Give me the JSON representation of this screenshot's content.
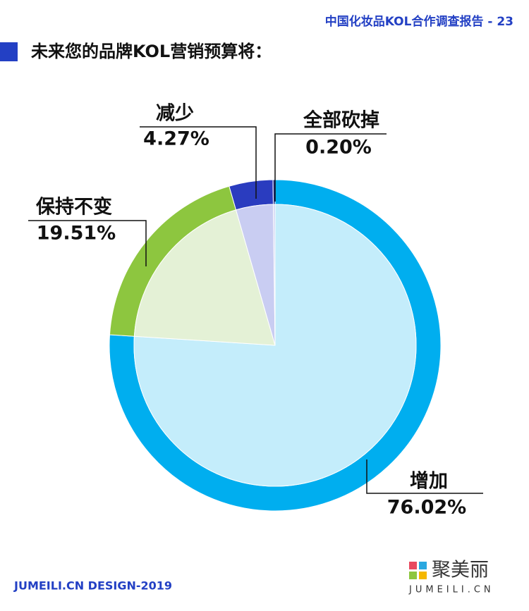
{
  "header": "中国化妆品KOL合作调查报告 - 23",
  "footer": "JUMEILI.CN DESIGN-2019",
  "logo": {
    "name": "聚美丽",
    "url": "JUMEILI.CN"
  },
  "chart_data": {
    "type": "pie",
    "title": "未来您的品牌KOL营销预算将：",
    "categories": [
      "增加",
      "保持不变",
      "减少",
      "全部砍掉"
    ],
    "values": [
      76.02,
      19.51,
      4.27,
      0.2
    ],
    "value_labels": [
      "76.02%",
      "19.51%",
      "4.27%",
      "0.20%"
    ],
    "colors": [
      "#00aeef",
      "#8dc63f",
      "#2a3cbf",
      "#1d2a8a"
    ],
    "light_colors": [
      "#c4edfb",
      "#e4f1d6",
      "#c9cdf2",
      "#c9cdf2"
    ]
  }
}
